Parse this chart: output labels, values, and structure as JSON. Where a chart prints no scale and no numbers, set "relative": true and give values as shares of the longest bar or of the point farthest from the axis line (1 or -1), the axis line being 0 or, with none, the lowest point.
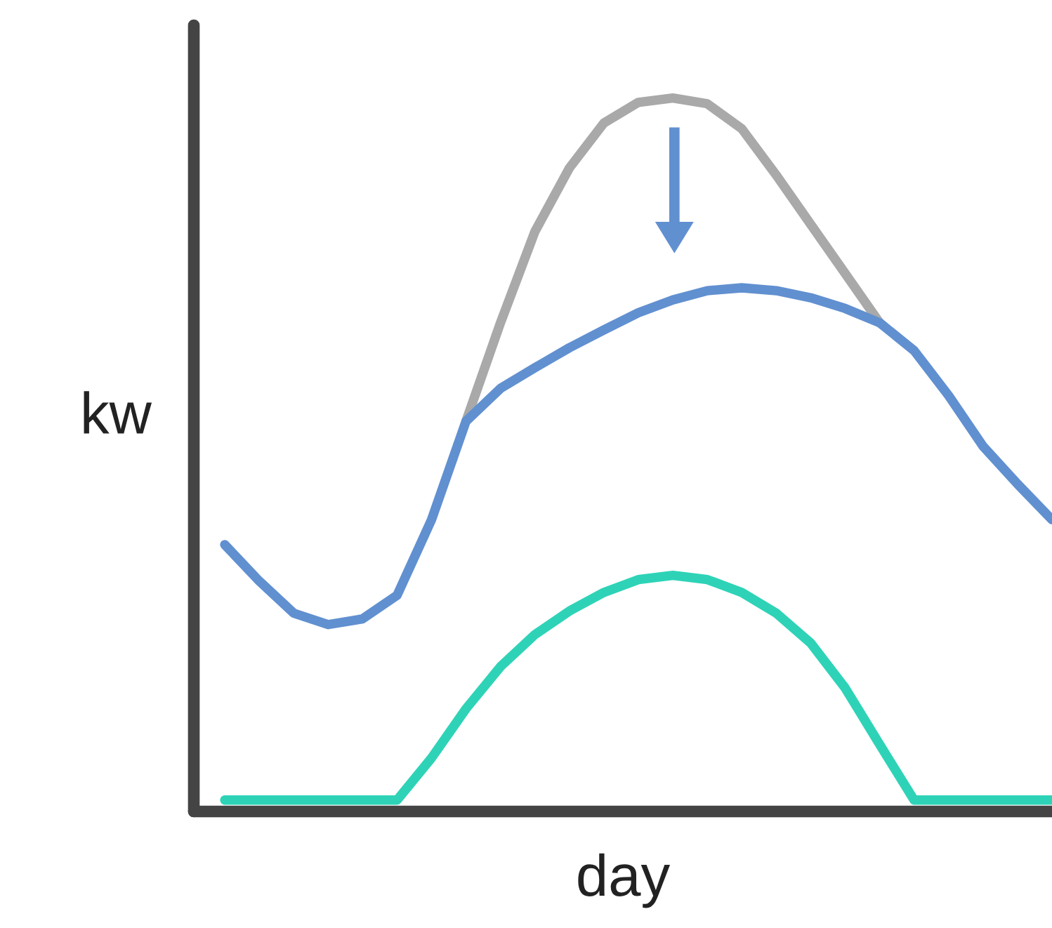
{
  "chart_data": {
    "type": "line",
    "relative": true,
    "xlabel": "day",
    "ylabel": "kw",
    "categories": [
      null,
      null,
      null,
      null,
      null,
      null,
      null,
      null,
      null,
      null,
      null,
      null,
      null,
      null,
      null,
      null,
      null,
      null,
      null,
      null,
      null,
      null,
      null,
      null,
      null
    ],
    "series": [
      {
        "color": "#a9a9a9",
        "values": [
          null,
          null,
          null,
          null,
          null,
          null,
          null,
          0.547,
          0.685,
          0.813,
          0.902,
          0.965,
          0.994,
          1.0,
          0.992,
          0.957,
          0.892,
          0.823,
          0.754,
          0.685,
          null,
          null,
          null,
          null,
          null
        ]
      },
      {
        "color": "#6190d0",
        "values": [
          0.374,
          0.323,
          0.278,
          0.262,
          0.27,
          0.303,
          0.409,
          0.547,
          0.593,
          0.622,
          0.65,
          0.675,
          0.699,
          0.717,
          0.73,
          0.734,
          0.73,
          0.72,
          0.705,
          0.685,
          0.646,
          0.583,
          0.512,
          0.459,
          0.409
        ]
      },
      {
        "color": "#2ed3b7",
        "values": [
          0.016,
          0.016,
          0.016,
          0.016,
          0.016,
          0.016,
          0.075,
          0.144,
          0.203,
          0.248,
          0.281,
          0.307,
          0.325,
          0.331,
          0.325,
          0.307,
          0.278,
          0.236,
          0.173,
          0.094,
          0.016,
          0.016,
          0.016,
          0.016,
          0.016
        ]
      }
    ],
    "grid": false,
    "legend": false,
    "marker": "none",
    "line_style": "solid"
  }
}
